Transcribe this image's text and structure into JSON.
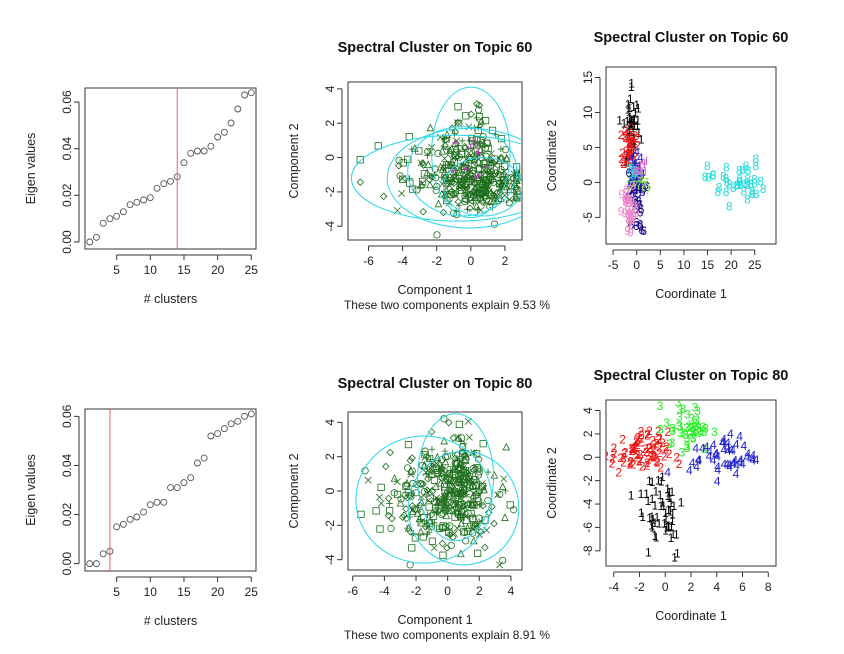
{
  "chart_data": [
    {
      "type": "scatter",
      "panel": "eigen-topic-60",
      "title": "",
      "xlabel": "# clusters",
      "ylabel": "Eigen values",
      "xlim": [
        0.3,
        25.7
      ],
      "ylim": [
        -0.003,
        0.066
      ],
      "xticks": [
        5,
        10,
        15,
        20,
        25
      ],
      "yticks": [
        0.0,
        0.02,
        0.04,
        0.06
      ],
      "ytick_labels": [
        "0.00",
        "0.02",
        "0.04",
        "0.06"
      ],
      "vline": 14,
      "x": [
        1,
        2,
        3,
        4,
        5,
        6,
        7,
        8,
        9,
        10,
        11,
        12,
        13,
        14,
        15,
        16,
        17,
        18,
        19,
        20,
        21,
        22,
        23,
        24,
        25
      ],
      "y": [
        0.0,
        0.002,
        0.008,
        0.01,
        0.011,
        0.013,
        0.016,
        0.017,
        0.018,
        0.019,
        0.023,
        0.025,
        0.026,
        0.028,
        0.034,
        0.038,
        0.039,
        0.039,
        0.041,
        0.045,
        0.047,
        0.051,
        0.057,
        0.063,
        0.064
      ],
      "colors": {
        "points": "#555555",
        "vline": "#f06060"
      }
    },
    {
      "type": "scatter",
      "panel": "pca-topic-60",
      "title": "Spectral Cluster on Topic 60",
      "xlabel": "Component 1",
      "ylabel": "Component 2",
      "subtitle": "These two components explain 9.53 %",
      "xlim": [
        -7.2,
        3.0
      ],
      "ylim": [
        -4.8,
        4.4
      ],
      "xticks": [
        -6,
        -4,
        -2,
        0,
        2
      ],
      "yticks": [
        -4,
        -2,
        0,
        2,
        4
      ],
      "ellipses": [
        {
          "cx": 0.0,
          "cy": 0.3,
          "rx": 2.3,
          "ry": 3.8
        },
        {
          "cx": -0.8,
          "cy": -1.2,
          "rx": 6.2,
          "ry": 2.5
        },
        {
          "cx": -0.5,
          "cy": -0.8,
          "rx": 3.2,
          "ry": 2.6
        },
        {
          "cx": 0.7,
          "cy": -1.7,
          "rx": 2.3,
          "ry": 1.7
        },
        {
          "cx": -0.1,
          "cy": -1.2,
          "rx": 4.8,
          "ry": 2.9
        }
      ],
      "point_count": 420,
      "colors": {
        "points": "#1e6e1e",
        "ellipses": "#29d8e8",
        "accent": "#cc33cc"
      }
    },
    {
      "type": "scatter",
      "panel": "mds-topic-60",
      "title": "Spectral Cluster on Topic 60",
      "xlabel": "Coordinate 1",
      "ylabel": "Coordinate 2",
      "xlim": [
        -6.5,
        29.5
      ],
      "ylim": [
        -8.8,
        16.5
      ],
      "xticks": [
        -5,
        0,
        5,
        10,
        15,
        20,
        25
      ],
      "yticks": [
        -5,
        0,
        5,
        10,
        15
      ],
      "clusters": [
        {
          "label": "1",
          "color": "#000000",
          "cx": -1.0,
          "cy": 8.0,
          "sx": 0.9,
          "sy": 3.2,
          "n": 45
        },
        {
          "label": "2",
          "color": "#ee1111",
          "cx": -1.5,
          "cy": 5.0,
          "sx": 0.7,
          "sy": 1.5,
          "n": 35
        },
        {
          "label": "3",
          "color": "#22bb22",
          "cx": -0.5,
          "cy": 1.0,
          "sx": 0.7,
          "sy": 0.8,
          "n": 12
        },
        {
          "label": "4",
          "color": "#2222cc",
          "cx": -0.5,
          "cy": 0.5,
          "sx": 0.8,
          "sy": 1.6,
          "n": 35
        },
        {
          "label": "5",
          "color": "#44ccdd",
          "cx": -0.8,
          "cy": 1.0,
          "sx": 0.6,
          "sy": 0.8,
          "n": 10
        },
        {
          "label": "6",
          "color": "#1a0a88",
          "cx": 0.0,
          "cy": -3.0,
          "sx": 1.0,
          "sy": 2.2,
          "n": 25
        },
        {
          "label": "7",
          "color": "#88ee44",
          "cx": 1.0,
          "cy": -0.5,
          "sx": 1.0,
          "sy": 0.6,
          "n": 8
        },
        {
          "label": "8",
          "color": "#22dddd",
          "cx": 21.0,
          "cy": 0.0,
          "sx": 3.0,
          "sy": 1.6,
          "n": 40
        },
        {
          "label": "9",
          "color": "#ee88cc",
          "cx": -1.5,
          "cy": -4.5,
          "sx": 0.8,
          "sy": 1.8,
          "n": 30
        },
        {
          "label": "d",
          "color": "#cc66cc",
          "cx": 1.0,
          "cy": 1.5,
          "sx": 0.8,
          "sy": 0.8,
          "n": 6
        }
      ]
    },
    {
      "type": "scatter",
      "panel": "eigen-topic-80",
      "title": "",
      "xlabel": "# clusters",
      "ylabel": "Eigen values",
      "xlim": [
        0.3,
        25.7
      ],
      "ylim": [
        -0.003,
        0.063
      ],
      "xticks": [
        5,
        10,
        15,
        20,
        25
      ],
      "yticks": [
        0.0,
        0.02,
        0.04,
        0.06
      ],
      "ytick_labels": [
        "0.00",
        "0.02",
        "0.04",
        "0.06"
      ],
      "vline": 4,
      "x": [
        1,
        2,
        3,
        4,
        5,
        6,
        7,
        8,
        9,
        10,
        11,
        12,
        13,
        14,
        15,
        16,
        17,
        18,
        19,
        20,
        21,
        22,
        23,
        24,
        25
      ],
      "y": [
        0.0,
        0.0,
        0.004,
        0.005,
        0.015,
        0.016,
        0.018,
        0.019,
        0.021,
        0.024,
        0.025,
        0.025,
        0.031,
        0.031,
        0.033,
        0.035,
        0.041,
        0.043,
        0.052,
        0.053,
        0.055,
        0.057,
        0.058,
        0.06,
        0.061
      ],
      "colors": {
        "points": "#555555",
        "vline": "#f06060"
      }
    },
    {
      "type": "scatter",
      "panel": "pca-topic-80",
      "title": "Spectral Cluster on Topic 80",
      "xlabel": "Component 1",
      "ylabel": "Component 2",
      "subtitle": "These two components explain 8.91 %",
      "xlim": [
        -6.3,
        4.7
      ],
      "ylim": [
        -4.6,
        4.6
      ],
      "xticks": [
        -6,
        -4,
        -2,
        0,
        2,
        4
      ],
      "yticks": [
        -4,
        -2,
        0,
        2,
        4
      ],
      "ellipses": [
        {
          "cx": -1.5,
          "cy": -0.5,
          "rx": 4.3,
          "ry": 3.7
        },
        {
          "cx": 0.5,
          "cy": 0.8,
          "rx": 2.4,
          "ry": 3.7
        },
        {
          "cx": 1.0,
          "cy": -1.0,
          "rx": 3.5,
          "ry": 3.3
        }
      ],
      "point_count": 420,
      "colors": {
        "points": "#1e6e1e",
        "ellipses": "#29d8e8"
      }
    },
    {
      "type": "scatter",
      "panel": "mds-topic-80",
      "title": "Spectral Cluster on Topic 80",
      "xlabel": "Coordinate 1",
      "ylabel": "Coordinate 2",
      "xlim": [
        -4.6,
        8.6
      ],
      "ylim": [
        -9.3,
        4.9
      ],
      "xticks": [
        -4,
        -2,
        0,
        2,
        4,
        6,
        8
      ],
      "yticks": [
        -8,
        -6,
        -4,
        -2,
        0,
        2,
        4
      ],
      "clusters": [
        {
          "label": "2",
          "color": "#ee1111",
          "cx": -2.0,
          "cy": 0.3,
          "sx": 1.1,
          "sy": 0.9,
          "n": 75
        },
        {
          "label": "3",
          "color": "#22ee22",
          "cx": 1.8,
          "cy": 2.5,
          "sx": 0.9,
          "sy": 1.0,
          "n": 45
        },
        {
          "label": "4",
          "color": "#2222cc",
          "cx": 4.5,
          "cy": 0.0,
          "sx": 1.3,
          "sy": 0.9,
          "n": 50
        },
        {
          "label": "1",
          "color": "#000000",
          "cx": -0.3,
          "cy": -4.5,
          "sx": 0.9,
          "sy": 2.2,
          "n": 55
        }
      ]
    }
  ]
}
